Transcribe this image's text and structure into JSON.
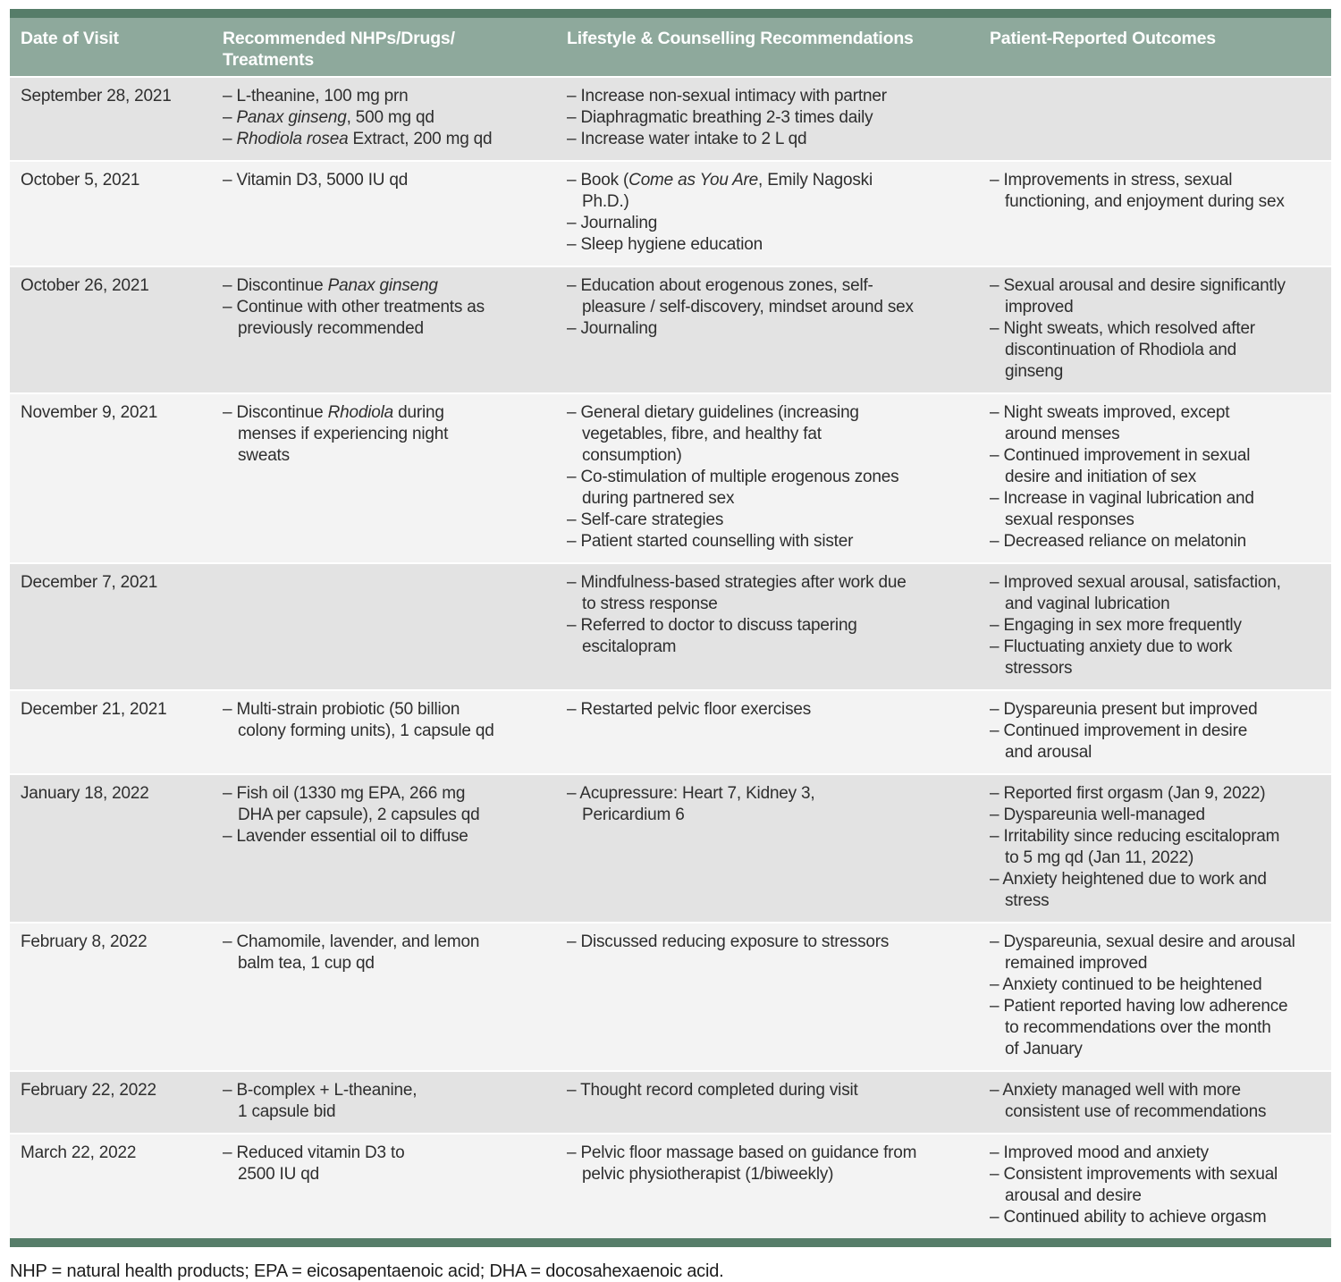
{
  "colors": {
    "accent_bar": "#567d69",
    "header_bg": "#8ea99c",
    "header_text": "#ffffff",
    "row_odd": "#e3e3e3",
    "row_even": "#f3f3f3",
    "body_text": "#2e2e2e"
  },
  "table": {
    "bullet": "–",
    "columns": [
      "Date of Visit",
      "Recommended NHPs/Drugs/\nTreatments",
      "Lifestyle & Counselling Recommendations",
      "Patient-Reported Outcomes"
    ],
    "rows": [
      {
        "date": "September 28, 2021",
        "treatments": [
          "L-theanine, 100 mg prn",
          "*Panax ginseng*, 500 mg qd",
          "*Rhodiola rosea* Extract, 200 mg qd"
        ],
        "lifestyle": [
          "Increase non-sexual intimacy with partner",
          "Diaphragmatic breathing 2-3 times daily",
          "Increase water intake to 2 L qd"
        ],
        "outcomes": []
      },
      {
        "date": "October 5, 2021",
        "treatments": [
          "Vitamin D3, 5000 IU qd"
        ],
        "lifestyle": [
          "Book (*Come as You Are*, Emily Nagoski\nPh.D.)",
          "Journaling",
          "Sleep hygiene education"
        ],
        "outcomes": [
          "Improvements in stress, sexual\nfunctioning, and enjoyment during sex"
        ]
      },
      {
        "date": "October 26, 2021",
        "treatments": [
          "Discontinue *Panax ginseng*",
          "Continue with other treatments as\npreviously recommended"
        ],
        "lifestyle": [
          "Education about erogenous zones, self-\npleasure / self-discovery, mindset around sex",
          "Journaling"
        ],
        "outcomes": [
          "Sexual arousal and desire significantly\nimproved",
          "Night sweats, which resolved after\ndiscontinuation of Rhodiola and\nginseng"
        ]
      },
      {
        "date": "November 9, 2021",
        "treatments": [
          "Discontinue *Rhodiola* during\nmenses if experiencing night\nsweats"
        ],
        "lifestyle": [
          "General dietary guidelines (increasing\nvegetables, fibre, and healthy fat\nconsumption)",
          "Co-stimulation of multiple erogenous zones\nduring partnered sex",
          "Self-care strategies",
          "Patient started counselling with sister"
        ],
        "outcomes": [
          "Night sweats improved, except\naround menses",
          "Continued improvement in sexual\ndesire and initiation of sex",
          "Increase in vaginal lubrication and\nsexual responses",
          "Decreased reliance on melatonin"
        ]
      },
      {
        "date": "December 7, 2021",
        "treatments": [],
        "lifestyle": [
          "Mindfulness-based strategies after work due\nto stress response",
          "Referred to doctor to discuss tapering\nescitalopram"
        ],
        "outcomes": [
          "Improved sexual arousal, satisfaction,\nand vaginal lubrication",
          "Engaging in sex more frequently",
          "Fluctuating anxiety due to work\nstressors"
        ]
      },
      {
        "date": "December 21, 2021",
        "treatments": [
          "Multi-strain probiotic (50 billion\ncolony forming units), 1 capsule qd"
        ],
        "lifestyle": [
          "Restarted pelvic floor exercises"
        ],
        "outcomes": [
          "Dyspareunia present but improved",
          "Continued improvement in desire\nand arousal"
        ]
      },
      {
        "date": "January 18, 2022",
        "treatments": [
          "Fish oil (1330 mg EPA, 266 mg\nDHA per capsule), 2 capsules qd",
          "Lavender essential oil to diffuse"
        ],
        "lifestyle": [
          "Acupressure: Heart 7, Kidney 3,\nPericardium 6"
        ],
        "outcomes": [
          "Reported first orgasm (Jan 9, 2022)",
          "Dyspareunia well-managed",
          "Irritability since reducing escitalopram\nto 5 mg qd (Jan 11, 2022)",
          "Anxiety heightened due to work and\nstress"
        ]
      },
      {
        "date": "February 8, 2022",
        "treatments": [
          "Chamomile, lavender, and lemon\nbalm tea, 1 cup qd"
        ],
        "lifestyle": [
          "Discussed reducing exposure to stressors"
        ],
        "outcomes": [
          "Dyspareunia, sexual desire and arousal\nremained improved",
          "Anxiety continued to be heightened",
          "Patient reported having low adherence\nto recommendations over the month\nof January"
        ]
      },
      {
        "date": "February 22, 2022",
        "treatments": [
          "B-complex + L-theanine,\n1 capsule bid"
        ],
        "lifestyle": [
          "Thought record completed during visit"
        ],
        "outcomes": [
          "Anxiety managed well with more\nconsistent use of recommendations"
        ]
      },
      {
        "date": "March 22, 2022",
        "treatments": [
          "Reduced vitamin D3 to\n2500 IU qd"
        ],
        "lifestyle": [
          "Pelvic floor massage based on guidance from\npelvic physiotherapist (1/biweekly)"
        ],
        "outcomes": [
          "Improved mood and anxiety",
          "Consistent improvements with sexual\narousal and desire",
          "Continued ability to achieve orgasm"
        ]
      }
    ]
  },
  "footnote": "NHP = natural health products; EPA = eicosapentaenoic acid; DHA = docosahexaenoic acid."
}
